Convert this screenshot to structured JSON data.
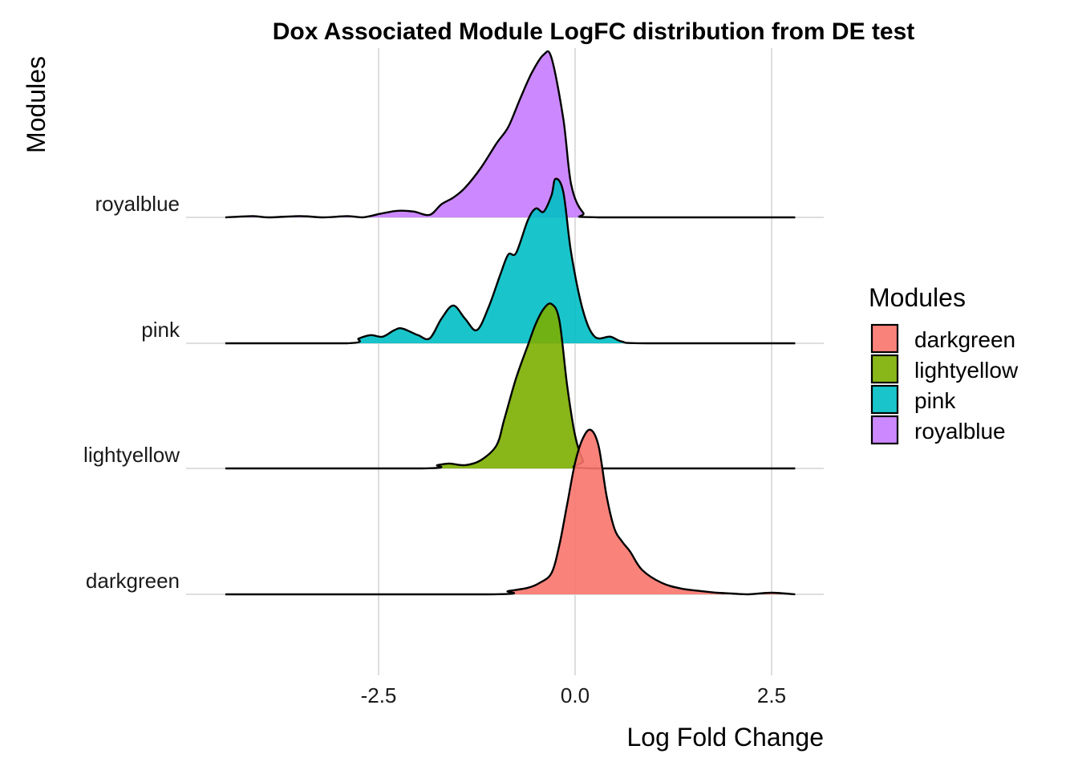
{
  "chart_data": {
    "type": "ridgeline",
    "title": "Dox Associated Module LogFC distribution from DE test",
    "xlabel": "Log Fold Change",
    "ylabel": "Modules",
    "xlim": [
      -4.45,
      2.8
    ],
    "x_ticks": [
      -2.5,
      0.0,
      2.5
    ],
    "x_tick_labels": [
      "-2.5",
      "0.0",
      "2.5"
    ],
    "grid": true,
    "legend": {
      "title": "Modules",
      "position": "right",
      "entries": [
        "darkgreen",
        "lightyellow",
        "pink",
        "royalblue"
      ]
    },
    "series": [
      {
        "name": "darkgreen",
        "color": "#F8766D",
        "density": [
          [
            -4.45,
            0
          ],
          [
            -1.1,
            0
          ],
          [
            -0.85,
            0.02
          ],
          [
            -0.6,
            0.04
          ],
          [
            -0.45,
            0.07
          ],
          [
            -0.3,
            0.13
          ],
          [
            -0.2,
            0.3
          ],
          [
            -0.1,
            0.55
          ],
          [
            0.0,
            0.8
          ],
          [
            0.1,
            0.95
          ],
          [
            0.2,
            1.0
          ],
          [
            0.3,
            0.9
          ],
          [
            0.4,
            0.6
          ],
          [
            0.5,
            0.4
          ],
          [
            0.6,
            0.32
          ],
          [
            0.7,
            0.26
          ],
          [
            0.85,
            0.15
          ],
          [
            1.1,
            0.07
          ],
          [
            1.35,
            0.035
          ],
          [
            1.6,
            0.02
          ],
          [
            1.8,
            0.01
          ],
          [
            2.0,
            0.005
          ],
          [
            2.2,
            0.0
          ],
          [
            2.5,
            0.01
          ],
          [
            2.8,
            0.0
          ]
        ]
      },
      {
        "name": "lightyellow",
        "color": "#7CAE00",
        "density": [
          [
            -4.45,
            0
          ],
          [
            -1.95,
            0
          ],
          [
            -1.75,
            0.02
          ],
          [
            -1.6,
            0.03
          ],
          [
            -1.4,
            0.02
          ],
          [
            -1.2,
            0.05
          ],
          [
            -1.0,
            0.14
          ],
          [
            -0.9,
            0.3
          ],
          [
            -0.75,
            0.55
          ],
          [
            -0.6,
            0.75
          ],
          [
            -0.5,
            0.88
          ],
          [
            -0.4,
            0.97
          ],
          [
            -0.3,
            1.0
          ],
          [
            -0.2,
            0.9
          ],
          [
            -0.1,
            0.5
          ],
          [
            0.0,
            0.2
          ],
          [
            0.1,
            0.05
          ],
          [
            0.2,
            0.0
          ],
          [
            2.8,
            0.0
          ]
        ]
      },
      {
        "name": "pink",
        "color": "#00BFC4",
        "density": [
          [
            -4.45,
            0
          ],
          [
            -2.9,
            0
          ],
          [
            -2.75,
            0.03
          ],
          [
            -2.6,
            0.05
          ],
          [
            -2.45,
            0.04
          ],
          [
            -2.3,
            0.08
          ],
          [
            -2.2,
            0.09
          ],
          [
            -2.0,
            0.05
          ],
          [
            -1.85,
            0.03
          ],
          [
            -1.7,
            0.15
          ],
          [
            -1.55,
            0.23
          ],
          [
            -1.4,
            0.15
          ],
          [
            -1.25,
            0.08
          ],
          [
            -1.1,
            0.22
          ],
          [
            -0.95,
            0.42
          ],
          [
            -0.85,
            0.54
          ],
          [
            -0.75,
            0.55
          ],
          [
            -0.6,
            0.75
          ],
          [
            -0.5,
            0.82
          ],
          [
            -0.4,
            0.8
          ],
          [
            -0.3,
            0.9
          ],
          [
            -0.25,
            1.0
          ],
          [
            -0.15,
            0.92
          ],
          [
            -0.05,
            0.55
          ],
          [
            0.1,
            0.2
          ],
          [
            0.25,
            0.04
          ],
          [
            0.45,
            0.04
          ],
          [
            0.6,
            0.01
          ],
          [
            0.9,
            0.0
          ],
          [
            2.8,
            0.0
          ]
        ]
      },
      {
        "name": "royalblue",
        "color": "#C77CFF",
        "density": [
          [
            -4.45,
            0
          ],
          [
            -4.1,
            0.008
          ],
          [
            -3.9,
            0.0
          ],
          [
            -3.5,
            0.008
          ],
          [
            -3.2,
            0.0
          ],
          [
            -2.9,
            0.008
          ],
          [
            -2.7,
            0.0
          ],
          [
            -2.45,
            0.025
          ],
          [
            -2.25,
            0.04
          ],
          [
            -2.05,
            0.035
          ],
          [
            -1.85,
            0.015
          ],
          [
            -1.7,
            0.08
          ],
          [
            -1.55,
            0.12
          ],
          [
            -1.4,
            0.18
          ],
          [
            -1.2,
            0.3
          ],
          [
            -1.0,
            0.45
          ],
          [
            -0.85,
            0.55
          ],
          [
            -0.7,
            0.72
          ],
          [
            -0.55,
            0.88
          ],
          [
            -0.4,
            0.99
          ],
          [
            -0.3,
            0.97
          ],
          [
            -0.15,
            0.6
          ],
          [
            -0.05,
            0.2
          ],
          [
            0.1,
            0.03
          ],
          [
            0.3,
            0.0
          ],
          [
            2.8,
            0.0
          ]
        ]
      }
    ]
  }
}
